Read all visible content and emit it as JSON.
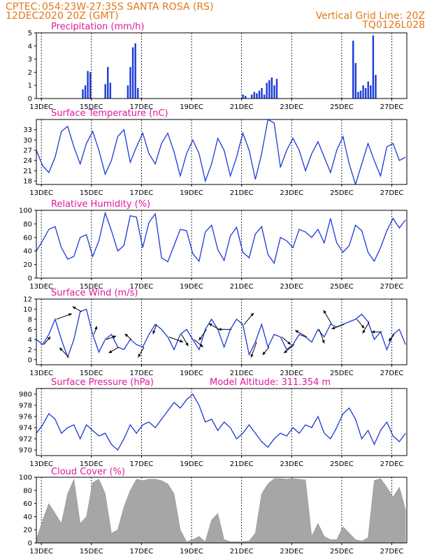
{
  "header": {
    "center_label": "CPTEC:",
    "location": "054:23W-27:35S  SANTA ROSA (RS)",
    "run_time": "12DEC2020 20Z (GMT)",
    "grid_note": "Vertical Grid Line: 20Z",
    "product_code": "TQ0126L028"
  },
  "x_axis": {
    "days_from_start": [
      0.2,
      2.2,
      4.2,
      6.2,
      8.2,
      10.2,
      12.2,
      14.2
    ],
    "tick_labels": [
      "13DEC",
      "15DEC",
      "17DEC",
      "19DEC",
      "21DEC",
      "23DEC",
      "25DEC",
      "27DEC"
    ],
    "dashed_gridlines": true
  },
  "colors": {
    "series": "#1a3ad6",
    "cloud": "#a6a6a6",
    "panel_title": "#e0189c",
    "header": "#e07818",
    "wind_arrow": "#000000"
  },
  "chart_data": [
    {
      "type": "bar",
      "title": "Precipitation (mm/h)",
      "ylim": [
        0,
        5
      ],
      "yticks": [
        0,
        1,
        2,
        3,
        4,
        5
      ],
      "x": [
        1.85,
        1.95,
        2.05,
        2.15,
        2.75,
        2.85,
        2.95,
        3.65,
        3.75,
        3.85,
        3.95,
        4.05,
        8.25,
        8.35,
        8.6,
        8.7,
        8.8,
        8.9,
        9.0,
        9.1,
        9.2,
        9.3,
        9.4,
        9.5,
        9.6,
        12.65,
        12.75,
        12.85,
        12.95,
        13.05,
        13.15,
        13.25,
        13.35,
        13.45,
        13.55
      ],
      "values": [
        0.7,
        1.0,
        2.1,
        2.0,
        1.1,
        2.4,
        1.2,
        1.0,
        2.4,
        3.9,
        4.2,
        0.8,
        0.3,
        0.2,
        0.3,
        0.5,
        0.4,
        0.6,
        0.8,
        0.3,
        1.2,
        1.4,
        1.6,
        1.0,
        1.5,
        4.4,
        2.7,
        0.5,
        0.6,
        1.0,
        0.8,
        1.3,
        1.0,
        4.8,
        1.8
      ]
    },
    {
      "type": "line",
      "title": "Surface Temperature (nC)",
      "ylim": [
        17,
        36
      ],
      "yticks": [
        18,
        21,
        24,
        27,
        30,
        33
      ],
      "x": [
        0,
        0.25,
        0.5,
        0.75,
        1,
        1.25,
        1.5,
        1.75,
        2,
        2.25,
        2.5,
        2.75,
        3,
        3.25,
        3.5,
        3.75,
        4,
        4.25,
        4.5,
        4.75,
        5,
        5.25,
        5.5,
        5.75,
        6,
        6.25,
        6.5,
        6.75,
        7,
        7.25,
        7.5,
        7.75,
        8,
        8.25,
        8.5,
        8.75,
        9,
        9.25,
        9.5,
        9.75,
        10,
        10.25,
        10.5,
        10.75,
        11,
        11.25,
        11.5,
        11.75,
        12,
        12.25,
        12.5,
        12.75,
        13,
        13.25,
        13.5,
        13.75,
        14,
        14.25,
        14.5,
        14.75
      ],
      "values": [
        27,
        22.5,
        20.5,
        25,
        32.5,
        34,
        28,
        23,
        29,
        32.5,
        27,
        20,
        24,
        31,
        33,
        23.5,
        28,
        32,
        26,
        23,
        29,
        32,
        26.5,
        19.5,
        26,
        30,
        26,
        18,
        23,
        30.5,
        27,
        19.5,
        25,
        32,
        27,
        18.5,
        26,
        36,
        35,
        22,
        27,
        30.5,
        27,
        21,
        26,
        29.5,
        25,
        20.5,
        27,
        31,
        23,
        17,
        23,
        29,
        24,
        19.5,
        28,
        29,
        24,
        25
      ]
    },
    {
      "type": "line",
      "title": "Relative Humidity (%)",
      "ylim": [
        0,
        100
      ],
      "yticks": [
        0,
        20,
        40,
        60,
        80,
        100
      ],
      "x": [
        0,
        0.25,
        0.5,
        0.75,
        1,
        1.25,
        1.5,
        1.75,
        2,
        2.25,
        2.5,
        2.75,
        3,
        3.25,
        3.5,
        3.75,
        4,
        4.25,
        4.5,
        4.75,
        5,
        5.25,
        5.5,
        5.75,
        6,
        6.25,
        6.5,
        6.75,
        7,
        7.25,
        7.5,
        7.75,
        8,
        8.25,
        8.5,
        8.75,
        9,
        9.25,
        9.5,
        9.75,
        10,
        10.25,
        10.5,
        10.75,
        11,
        11.25,
        11.5,
        11.75,
        12,
        12.25,
        12.5,
        12.75,
        13,
        13.25,
        13.5,
        13.75,
        14,
        14.25,
        14.5,
        14.75
      ],
      "values": [
        40,
        55,
        72,
        76,
        45,
        28,
        32,
        60,
        64,
        32,
        55,
        96,
        70,
        40,
        48,
        92,
        90,
        45,
        82,
        95,
        30,
        24,
        48,
        72,
        70,
        36,
        25,
        68,
        78,
        42,
        26,
        62,
        75,
        38,
        30,
        65,
        76,
        35,
        22,
        60,
        55,
        45,
        72,
        68,
        60,
        72,
        52,
        88,
        52,
        38,
        48,
        78,
        70,
        38,
        25,
        45,
        70,
        88,
        74,
        86
      ]
    },
    {
      "type": "line",
      "title": "Surface Wind (m/s)",
      "ylim": [
        -1,
        12
      ],
      "yticks": [
        0,
        2,
        4,
        6,
        8,
        10,
        12
      ],
      "x": [
        0,
        0.25,
        0.5,
        0.75,
        1,
        1.25,
        1.5,
        1.75,
        2,
        2.25,
        2.5,
        2.75,
        3,
        3.25,
        3.5,
        3.75,
        4,
        4.25,
        4.5,
        4.75,
        5,
        5.25,
        5.5,
        5.75,
        6,
        6.25,
        6.5,
        6.75,
        7,
        7.25,
        7.5,
        7.75,
        8,
        8.25,
        8.5,
        8.75,
        9,
        9.25,
        9.5,
        9.75,
        10,
        10.25,
        10.5,
        10.75,
        11,
        11.25,
        11.5,
        11.75,
        12,
        12.25,
        12.5,
        12.75,
        13,
        13.25,
        13.5,
        13.75,
        14,
        14.25,
        14.5,
        14.75
      ],
      "values": [
        4,
        3,
        5,
        8,
        4,
        0.5,
        4,
        9.5,
        10,
        5,
        1.5,
        4,
        5,
        2.5,
        2,
        4,
        3,
        2.5,
        5,
        7,
        6,
        4.5,
        2,
        5,
        6,
        4,
        2,
        6,
        8,
        6,
        2.5,
        6,
        8,
        7,
        1,
        3.5,
        7,
        2.5,
        5,
        4.5,
        2,
        3,
        5,
        4.5,
        3.5,
        6,
        4.5,
        7,
        6.5,
        7,
        7.5,
        8,
        9,
        7.5,
        4,
        5.5,
        2,
        5,
        6,
        3
      ]
    },
    {
      "type": "line",
      "title": "Surface Pressure (hPa)",
      "subtitle": "Model Altitude: 311.354 m",
      "ylim": [
        969,
        981
      ],
      "yticks": [
        970,
        972,
        974,
        976,
        978,
        980
      ],
      "x": [
        0,
        0.25,
        0.5,
        0.75,
        1,
        1.25,
        1.5,
        1.75,
        2,
        2.25,
        2.5,
        2.75,
        3,
        3.25,
        3.5,
        3.75,
        4,
        4.25,
        4.5,
        4.75,
        5,
        5.25,
        5.5,
        5.75,
        6,
        6.25,
        6.5,
        6.75,
        7,
        7.25,
        7.5,
        7.75,
        8,
        8.25,
        8.5,
        8.75,
        9,
        9.25,
        9.5,
        9.75,
        10,
        10.25,
        10.5,
        10.75,
        11,
        11.25,
        11.5,
        11.75,
        12,
        12.25,
        12.5,
        12.75,
        13,
        13.25,
        13.5,
        13.75,
        14,
        14.25,
        14.5,
        14.75
      ],
      "values": [
        973,
        974.5,
        976.5,
        975.5,
        973,
        974,
        974.5,
        972,
        974.5,
        973.5,
        972.5,
        973,
        971,
        970,
        972,
        974.5,
        973,
        974.5,
        975,
        974,
        975.5,
        977,
        978.5,
        977.5,
        979,
        980,
        978,
        975,
        975.5,
        973.5,
        975,
        974,
        972,
        973,
        974.5,
        973,
        971.5,
        970.5,
        972,
        973,
        972.5,
        974,
        973,
        974.5,
        974,
        976,
        973,
        972,
        974,
        976.5,
        977.5,
        975.5,
        972,
        973.5,
        971,
        973.5,
        975,
        972.5,
        971.5,
        973
      ]
    },
    {
      "type": "area",
      "title": "Cloud Cover (%)",
      "ylim": [
        0,
        100
      ],
      "yticks": [
        0,
        20,
        40,
        60,
        80,
        100
      ],
      "x": [
        0,
        0.25,
        0.5,
        0.75,
        1,
        1.25,
        1.5,
        1.75,
        2,
        2.25,
        2.5,
        2.75,
        3,
        3.25,
        3.5,
        3.75,
        4,
        4.25,
        4.5,
        4.75,
        5,
        5.25,
        5.5,
        5.75,
        6,
        6.25,
        6.5,
        6.75,
        7,
        7.25,
        7.5,
        7.75,
        8,
        8.25,
        8.5,
        8.75,
        9,
        9.25,
        9.5,
        9.75,
        10,
        10.25,
        10.5,
        10.75,
        11,
        11.25,
        11.5,
        11.75,
        12,
        12.25,
        12.5,
        12.75,
        13,
        13.25,
        13.5,
        13.75,
        14,
        14.25,
        14.5,
        14.75
      ],
      "values": [
        5,
        35,
        60,
        45,
        30,
        75,
        97,
        30,
        40,
        92,
        97,
        75,
        15,
        20,
        55,
        80,
        97,
        95,
        97,
        97,
        95,
        90,
        75,
        20,
        2,
        5,
        10,
        2,
        35,
        45,
        5,
        2,
        2,
        2,
        3,
        15,
        75,
        90,
        98,
        98,
        97,
        98,
        97,
        96,
        10,
        30,
        10,
        5,
        5,
        25,
        15,
        5,
        3,
        8,
        95,
        98,
        85,
        70,
        85,
        50
      ]
    }
  ],
  "wind_vectors": {
    "x": [
      0.3,
      0.8,
      1.3,
      1.8,
      2.3,
      2.8,
      3.3,
      3.8,
      4.3,
      4.8,
      5.3,
      5.8,
      6.3,
      6.8,
      7.3,
      7.8,
      8.3,
      8.8,
      9.3,
      9.8,
      10.3,
      10.8,
      11.3,
      11.8,
      12.3,
      12.8,
      13.3,
      13.8,
      14.3
    ],
    "speed": [
      4,
      8,
      6,
      4,
      3,
      4,
      5,
      3,
      5,
      4,
      7,
      6,
      5,
      6,
      5,
      6,
      7,
      8,
      4,
      5,
      6,
      6,
      7,
      8,
      6,
      5,
      6,
      4,
      3
    ],
    "direction_deg": [
      40,
      70,
      315,
      300,
      20,
      70,
      240,
      310,
      210,
      200,
      110,
      150,
      130,
      215,
      300,
      270,
      40,
      200,
      220,
      130,
      230,
      300,
      160,
      330,
      250,
      140,
      210,
      270,
      220
    ]
  }
}
